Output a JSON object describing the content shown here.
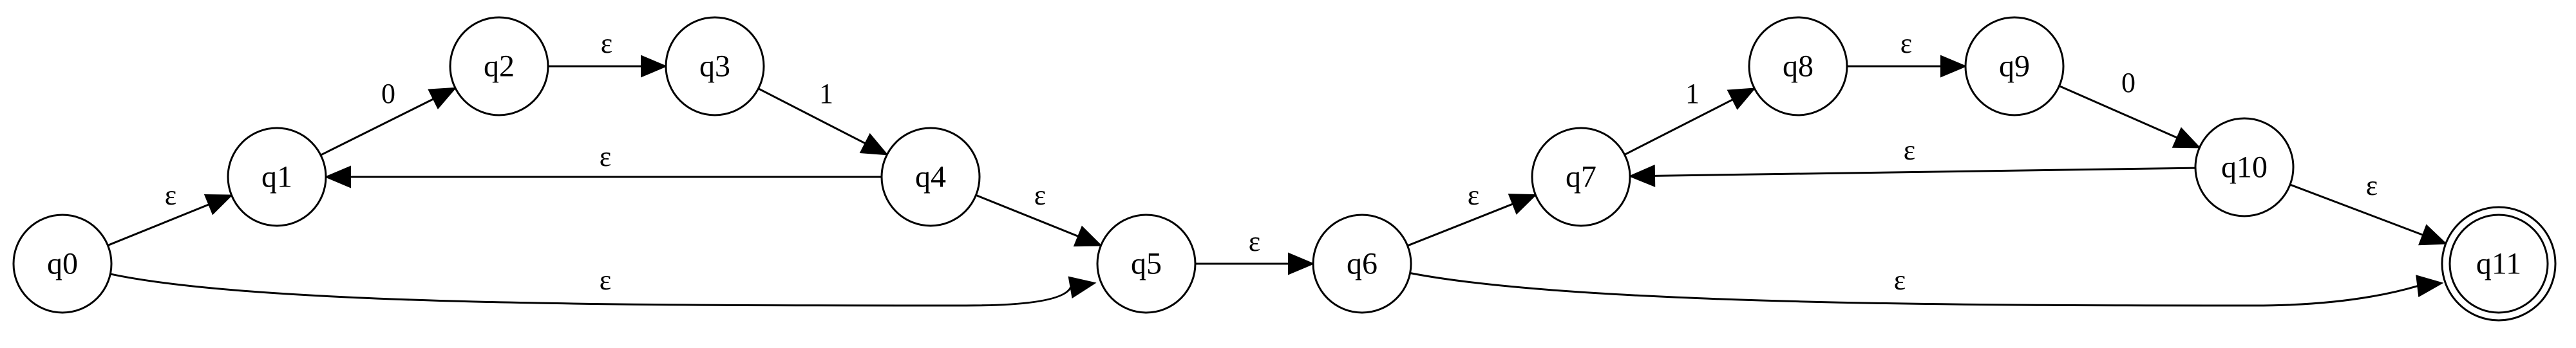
{
  "states": [
    {
      "id": "q0",
      "label": "q0",
      "accepting": false
    },
    {
      "id": "q1",
      "label": "q1",
      "accepting": false
    },
    {
      "id": "q2",
      "label": "q2",
      "accepting": false
    },
    {
      "id": "q3",
      "label": "q3",
      "accepting": false
    },
    {
      "id": "q4",
      "label": "q4",
      "accepting": false
    },
    {
      "id": "q5",
      "label": "q5",
      "accepting": false
    },
    {
      "id": "q6",
      "label": "q6",
      "accepting": false
    },
    {
      "id": "q7",
      "label": "q7",
      "accepting": false
    },
    {
      "id": "q8",
      "label": "q8",
      "accepting": false
    },
    {
      "id": "q9",
      "label": "q9",
      "accepting": false
    },
    {
      "id": "q10",
      "label": "q10",
      "accepting": false
    },
    {
      "id": "q11",
      "label": "q11",
      "accepting": true
    }
  ],
  "transitions": [
    {
      "from": "q0",
      "to": "q1",
      "symbol": "ε"
    },
    {
      "from": "q0",
      "to": "q5",
      "symbol": "ε"
    },
    {
      "from": "q1",
      "to": "q2",
      "symbol": "0"
    },
    {
      "from": "q2",
      "to": "q3",
      "symbol": "ε"
    },
    {
      "from": "q3",
      "to": "q4",
      "symbol": "1"
    },
    {
      "from": "q4",
      "to": "q1",
      "symbol": "ε"
    },
    {
      "from": "q4",
      "to": "q5",
      "symbol": "ε"
    },
    {
      "from": "q5",
      "to": "q6",
      "symbol": "ε"
    },
    {
      "from": "q6",
      "to": "q7",
      "symbol": "ε"
    },
    {
      "from": "q6",
      "to": "q11",
      "symbol": "ε"
    },
    {
      "from": "q7",
      "to": "q8",
      "symbol": "1"
    },
    {
      "from": "q8",
      "to": "q9",
      "symbol": "ε"
    },
    {
      "from": "q9",
      "to": "q10",
      "symbol": "0"
    },
    {
      "from": "q10",
      "to": "q7",
      "symbol": "ε"
    },
    {
      "from": "q10",
      "to": "q11",
      "symbol": "ε"
    }
  ],
  "colors": {
    "stroke": "#000000",
    "fill": "#ffffff",
    "background": "#ffffff"
  }
}
